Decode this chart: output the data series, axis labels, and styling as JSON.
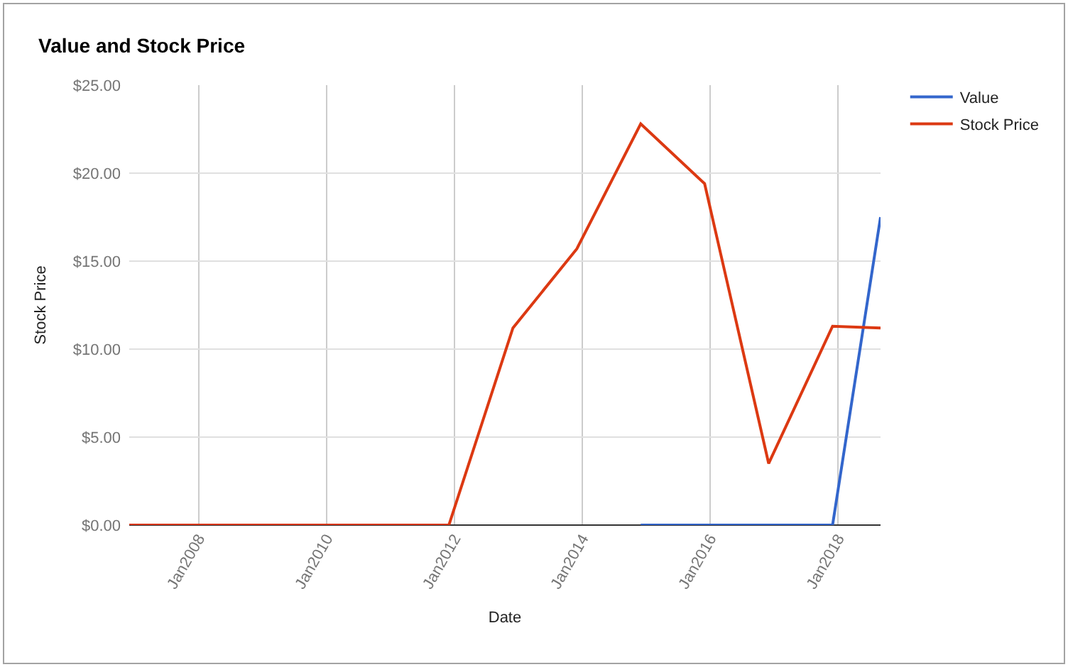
{
  "chart_data": {
    "type": "line",
    "title": "Value and Stock Price",
    "xlabel": "Date",
    "ylabel": "Stock Price",
    "x": [
      "2006-12",
      "2007-12",
      "2008-12",
      "2009-12",
      "2010-12",
      "2011-12",
      "2012-12",
      "2013-12",
      "2014-12",
      "2015-12",
      "2016-12",
      "2017-12",
      "2018-09"
    ],
    "series": [
      {
        "name": "Value",
        "color": "#3366cc",
        "x": [
          "2014-12",
          "2015-12",
          "2016-12",
          "2017-12",
          "2018-09"
        ],
        "values": [
          0,
          0,
          0,
          0,
          17.5
        ]
      },
      {
        "name": "Stock Price",
        "color": "#dc3912",
        "values": [
          0,
          0,
          0,
          0,
          0,
          0,
          11.2,
          15.7,
          22.8,
          19.4,
          3.5,
          11.3,
          11.2
        ]
      }
    ],
    "xlim": [
      "2006-12",
      "2018-09"
    ],
    "xticks": [
      {
        "value": "2008-01",
        "label": "Jan2008"
      },
      {
        "value": "2010-01",
        "label": "Jan2010"
      },
      {
        "value": "2012-01",
        "label": "Jan2012"
      },
      {
        "value": "2014-01",
        "label": "Jan2014"
      },
      {
        "value": "2016-01",
        "label": "Jan2016"
      },
      {
        "value": "2018-01",
        "label": "Jan2018"
      }
    ],
    "ylim": [
      0,
      25
    ],
    "yticks": [
      {
        "value": 0,
        "label": "$0.00"
      },
      {
        "value": 5,
        "label": "$5.00"
      },
      {
        "value": 10,
        "label": "$10.00"
      },
      {
        "value": 15,
        "label": "$15.00"
      },
      {
        "value": 20,
        "label": "$20.00"
      },
      {
        "value": 25,
        "label": "$25.00"
      }
    ],
    "grid": true,
    "legend": "top right"
  }
}
